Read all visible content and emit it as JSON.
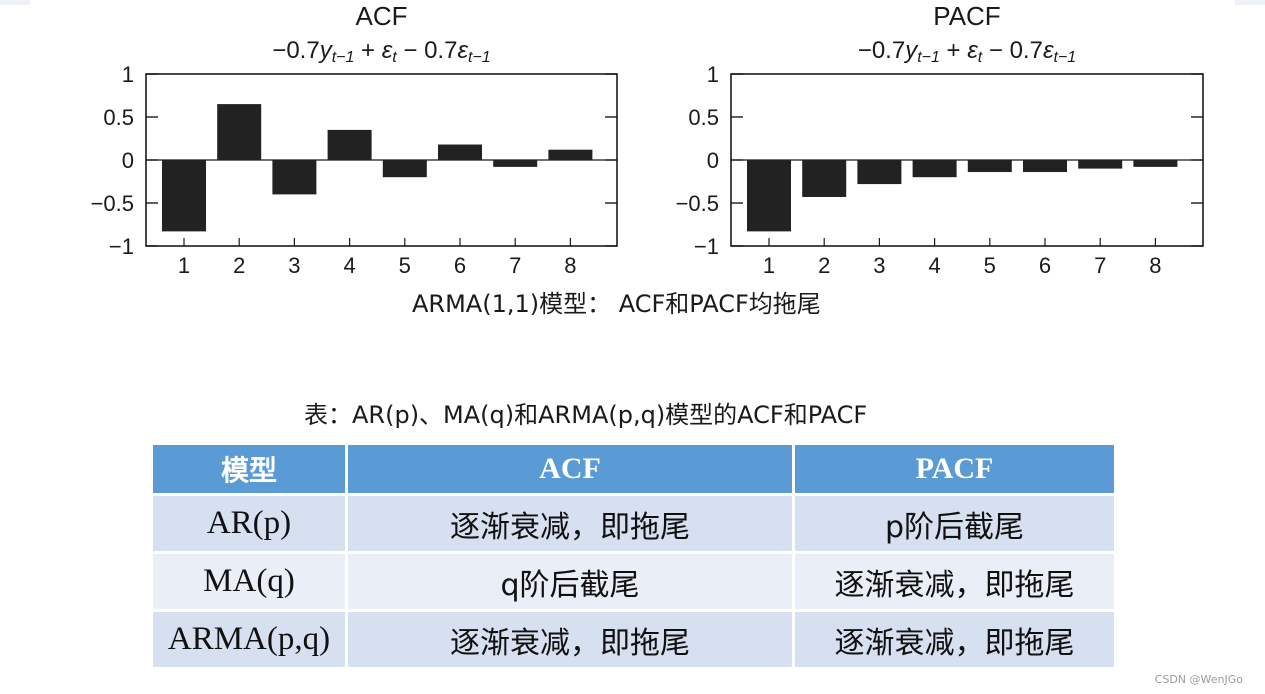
{
  "chart_data": [
    {
      "type": "bar",
      "title": "ACF",
      "subtitle": "−0.7y_{t−1} + ε_t − 0.7ε_{t−1}",
      "categories": [
        "1",
        "2",
        "3",
        "4",
        "5",
        "6",
        "7",
        "8"
      ],
      "values": [
        -0.83,
        0.65,
        -0.4,
        0.35,
        -0.2,
        0.18,
        -0.08,
        0.12
      ],
      "ylim": [
        -1,
        1
      ],
      "yticks": [
        "1",
        "0.5",
        "0",
        "−0.5",
        "−1"
      ],
      "grid": false
    },
    {
      "type": "bar",
      "title": "PACF",
      "subtitle": "−0.7y_{t−1} + ε_t − 0.7ε_{t−1}",
      "categories": [
        "1",
        "2",
        "3",
        "4",
        "5",
        "6",
        "7",
        "8"
      ],
      "values": [
        -0.83,
        -0.43,
        -0.28,
        -0.2,
        -0.14,
        -0.14,
        -0.1,
        -0.08
      ],
      "ylim": [
        -1,
        1
      ],
      "yticks": [
        "1",
        "0.5",
        "0",
        "−0.5",
        "−1"
      ],
      "grid": false
    }
  ],
  "chart_caption": "ARMA(1,1)模型：   ACF和PACF均拖尾",
  "table": {
    "caption": "表：AR(p)、MA(q)和ARMA(p,q)模型的ACF和PACF",
    "headers": [
      "模型",
      "ACF",
      "PACF"
    ],
    "rows": [
      [
        "AR(p)",
        "逐渐衰减，即拖尾",
        "p阶后截尾"
      ],
      [
        "MA(q)",
        "q阶后截尾",
        "逐渐衰减，即拖尾"
      ],
      [
        "ARMA(p,q)",
        "逐渐衰减，即拖尾",
        "逐渐衰减，即拖尾"
      ]
    ]
  },
  "watermark": "CSDN @WenJGo",
  "colors": {
    "bar": "#222222",
    "header_bg": "#5b9bd5",
    "row_odd": "#d6e0f0",
    "row_even": "#e9eef7"
  }
}
